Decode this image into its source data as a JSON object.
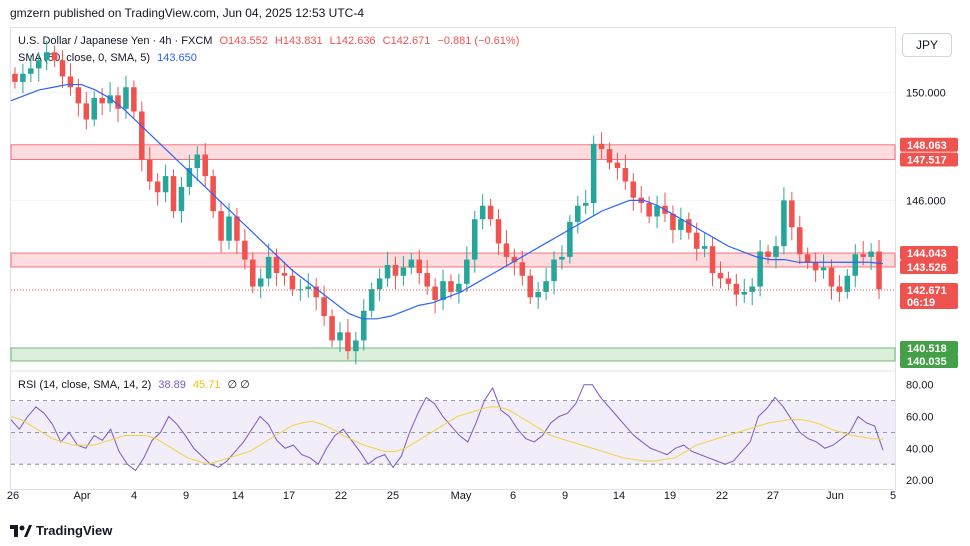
{
  "header": {
    "published": "gmzern published on TradingView.com, Jun 04, 2025 12:53 UTC-4"
  },
  "legend": {
    "symbol": "U.S. Dollar / Japanese Yen · 4h · FXCM",
    "o": "O143.552",
    "h": "H143.831",
    "l": "L142.636",
    "c": "C142.671",
    "change": "−0.881 (−0.61%)",
    "sma_label": "SMA (50, close, 0, SMA, 5)",
    "sma_value": "143.650",
    "rsi_label": "RSI (14, close, SMA, 14, 2)",
    "rsi_value": "38.89",
    "rsi_sma_value": "45.71",
    "rsi_extra": "∅ ∅"
  },
  "currency_button": "JPY",
  "footer": {
    "brand": "TradingView"
  },
  "colors": {
    "up": "#26a69a",
    "down": "#ef5350",
    "sma": "#2962ff",
    "rsi": "#7e57c2",
    "rsi_sma": "#f4d03f",
    "resistance": "#f7525f",
    "support": "#4caf50"
  },
  "price_tags": [
    {
      "label": "148.063",
      "price": 148.063,
      "color": "#ef5350"
    },
    {
      "label": "147.517",
      "price": 147.517,
      "color": "#ef5350"
    },
    {
      "label": "144.043",
      "price": 144.043,
      "color": "#ef5350"
    },
    {
      "label": "143.526",
      "price": 143.526,
      "color": "#ef5350"
    },
    {
      "label": "142.671",
      "price": 142.671,
      "color": "#ef5350",
      "sub": "06:19"
    },
    {
      "label": "140.518",
      "price": 140.518,
      "color": "#43a047"
    },
    {
      "label": "140.035",
      "price": 140.035,
      "color": "#43a047"
    }
  ],
  "chart_data": {
    "type": "candlestick",
    "y_ticks": [
      150,
      146
    ],
    "y_tick_labels": [
      "150.000",
      "146.000"
    ],
    "ylim": [
      139.7,
      152.4
    ],
    "x_tick_labels": [
      "26",
      "Apr",
      "4",
      "9",
      "14",
      "17",
      "22",
      "25",
      "May",
      "6",
      "9",
      "14",
      "19",
      "22",
      "27",
      "Jun",
      "5"
    ],
    "zones": [
      {
        "kind": "resistance",
        "from": 147.517,
        "to": 148.063
      },
      {
        "kind": "resistance",
        "from": 143.526,
        "to": 144.043
      },
      {
        "kind": "support",
        "from": 140.035,
        "to": 140.518
      }
    ],
    "current_price": 142.671,
    "closes": [
      150.4,
      150.7,
      150.9,
      151.2,
      151.5,
      151.2,
      150.6,
      150.2,
      149.6,
      149.0,
      149.8,
      149.6,
      149.9,
      149.4,
      150.2,
      149.3,
      147.5,
      146.7,
      146.3,
      146.9,
      145.6,
      146.5,
      147.2,
      147.7,
      146.9,
      145.6,
      144.5,
      145.4,
      144.5,
      143.8,
      142.8,
      143.1,
      143.9,
      143.3,
      143.2,
      142.7,
      142.7,
      142.8,
      142.4,
      141.7,
      140.8,
      141.1,
      140.4,
      140.8,
      141.9,
      142.7,
      143.1,
      143.6,
      143.2,
      143.5,
      143.8,
      143.3,
      142.8,
      142.3,
      143.0,
      142.6,
      142.9,
      143.8,
      145.3,
      145.8,
      145.3,
      144.4,
      143.9,
      143.7,
      143.2,
      142.4,
      142.6,
      143.0,
      143.8,
      143.9,
      145.2,
      145.8,
      145.9,
      148.1,
      147.9,
      147.4,
      147.2,
      146.7,
      146.1,
      145.9,
      145.4,
      145.8,
      145.5,
      144.9,
      145.3,
      144.8,
      144.2,
      144.3,
      143.3,
      143.1,
      142.9,
      142.5,
      142.6,
      142.8,
      144.1,
      143.9,
      144.3,
      146.0,
      145.0,
      144.0,
      143.7,
      143.4,
      143.5,
      142.8,
      142.6,
      143.2,
      144.0,
      143.9,
      144.1,
      142.7
    ],
    "sma": [
      149.7,
      149.9,
      150.1,
      150.2,
      150.3,
      150.3,
      150.1,
      149.8,
      149.4,
      148.9,
      148.4,
      147.9,
      147.4,
      146.9,
      146.4,
      145.9,
      145.4,
      144.9,
      144.4,
      143.9,
      143.4,
      143.0,
      142.6,
      142.2,
      141.8,
      141.6,
      141.6,
      141.7,
      141.9,
      142.1,
      142.2,
      142.4,
      142.6,
      142.9,
      143.2,
      143.5,
      143.8,
      144.1,
      144.4,
      144.7,
      145.0,
      145.3,
      145.6,
      145.8,
      146.0,
      146.0,
      145.8,
      145.5,
      145.2,
      144.9,
      144.6,
      144.3,
      144.1,
      143.9,
      143.8,
      143.8,
      143.7,
      143.7,
      143.7,
      143.7,
      143.7,
      143.7,
      143.65
    ],
    "rsi": [
      58,
      52,
      60,
      66,
      62,
      55,
      44,
      50,
      42,
      40,
      48,
      45,
      52,
      38,
      30,
      26,
      34,
      45,
      50,
      60,
      55,
      48,
      40,
      35,
      30,
      28,
      32,
      38,
      44,
      52,
      60,
      55,
      45,
      40,
      42,
      36,
      34,
      30,
      40,
      48,
      52,
      45,
      38,
      30,
      34,
      36,
      28,
      35,
      50,
      62,
      72,
      68,
      60,
      54,
      48,
      44,
      56,
      70,
      78,
      64,
      60,
      52,
      46,
      44,
      48,
      56,
      60,
      62,
      68,
      80,
      80,
      72,
      66,
      60,
      54,
      48,
      44,
      40,
      38,
      36,
      40,
      42,
      38,
      36,
      34,
      32,
      30,
      32,
      38,
      44,
      60,
      65,
      72,
      66,
      58,
      50,
      46,
      44,
      40,
      42,
      46,
      50,
      60,
      56,
      54,
      38.89
    ],
    "rsi_sma": [
      60,
      58,
      54,
      50,
      46,
      44,
      42,
      42,
      42,
      44,
      46,
      48,
      48,
      48,
      46,
      42,
      38,
      34,
      32,
      30,
      32,
      34,
      36,
      38,
      42,
      46,
      50,
      54,
      56,
      57,
      55,
      52,
      48,
      45,
      42,
      40,
      38,
      38,
      40,
      44,
      48,
      52,
      56,
      60,
      62,
      64,
      66,
      66,
      64,
      60,
      56,
      52,
      48,
      46,
      44,
      42,
      40,
      38,
      36,
      34,
      33,
      32,
      32,
      33,
      34,
      38,
      42,
      44,
      46,
      48,
      50,
      52,
      54,
      56,
      57,
      58,
      58,
      57,
      55,
      52,
      50,
      48,
      47,
      46,
      45.71
    ],
    "rsi_ylim": [
      15,
      88
    ],
    "rsi_ticks": [
      80,
      60,
      40,
      20
    ],
    "rsi_tick_labels": [
      "80.00",
      "60.00",
      "40.00",
      "20.00"
    ],
    "rsi_bands": [
      70,
      50,
      30
    ]
  }
}
